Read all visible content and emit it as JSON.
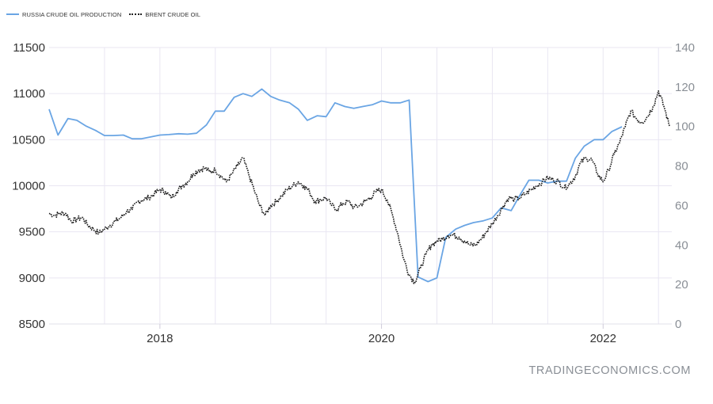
{
  "legend": {
    "series_1": "RUSSIA CRUDE OIL PRODUCTION",
    "series_2": "BRENT CRUDE OIL"
  },
  "watermark": "TRADINGECONOMICS.COM",
  "colors": {
    "russia_line": "#6aa5e4",
    "brent_line": "#1a1a1a",
    "grid": "#e9e6f2"
  },
  "chart_data": {
    "type": "line",
    "grid": true,
    "legend_position": "top-left",
    "x_ticks": [
      "2018",
      "2020",
      "2022"
    ],
    "x_range": [
      2017.0,
      2022.62
    ],
    "y_left": {
      "ticks": [
        8500,
        9000,
        9500,
        10000,
        10500,
        11000,
        11500
      ],
      "range": [
        8500,
        11500
      ]
    },
    "y_right": {
      "ticks": [
        0,
        20,
        40,
        60,
        80,
        100,
        120,
        140
      ],
      "range": [
        0,
        140
      ]
    },
    "series": [
      {
        "name": "RUSSIA CRUDE OIL PRODUCTION",
        "axis": "left",
        "style": "solid",
        "x": [
          2017.0,
          2017.08,
          2017.17,
          2017.25,
          2017.33,
          2017.42,
          2017.5,
          2017.58,
          2017.67,
          2017.75,
          2017.83,
          2017.92,
          2018.0,
          2018.08,
          2018.17,
          2018.25,
          2018.33,
          2018.42,
          2018.5,
          2018.58,
          2018.67,
          2018.75,
          2018.83,
          2018.92,
          2019.0,
          2019.08,
          2019.17,
          2019.25,
          2019.33,
          2019.42,
          2019.5,
          2019.58,
          2019.67,
          2019.75,
          2019.83,
          2019.92,
          2020.0,
          2020.08,
          2020.17,
          2020.25,
          2020.33,
          2020.42,
          2020.5,
          2020.58,
          2020.67,
          2020.75,
          2020.83,
          2020.92,
          2021.0,
          2021.08,
          2021.17,
          2021.25,
          2021.33,
          2021.42,
          2021.5,
          2021.58,
          2021.67,
          2021.75,
          2021.83,
          2021.92,
          2022.0,
          2022.08,
          2022.17
        ],
        "y": [
          10830,
          10550,
          10730,
          10710,
          10650,
          10600,
          10545,
          10545,
          10550,
          10510,
          10510,
          10530,
          10550,
          10555,
          10565,
          10560,
          10570,
          10660,
          10810,
          10810,
          10960,
          11000,
          10970,
          11050,
          10970,
          10930,
          10900,
          10830,
          10710,
          10760,
          10750,
          10900,
          10860,
          10840,
          10860,
          10880,
          10920,
          10900,
          10900,
          10930,
          9010,
          8960,
          9000,
          9440,
          9530,
          9570,
          9600,
          9620,
          9650,
          9760,
          9730,
          9900,
          10060,
          10060,
          10030,
          10050,
          10050,
          10300,
          10430,
          10500,
          10500,
          10590,
          10640
        ]
      },
      {
        "name": "BRENT CRUDE OIL",
        "axis": "right",
        "style": "dotted",
        "x": [
          2017.0,
          2017.05,
          2017.1,
          2017.15,
          2017.2,
          2017.25,
          2017.3,
          2017.35,
          2017.4,
          2017.45,
          2017.5,
          2017.55,
          2017.6,
          2017.65,
          2017.7,
          2017.75,
          2017.8,
          2017.85,
          2017.9,
          2017.95,
          2018.0,
          2018.05,
          2018.1,
          2018.15,
          2018.2,
          2018.25,
          2018.3,
          2018.35,
          2018.4,
          2018.45,
          2018.5,
          2018.55,
          2018.6,
          2018.65,
          2018.7,
          2018.75,
          2018.8,
          2018.85,
          2018.9,
          2018.95,
          2019.0,
          2019.05,
          2019.1,
          2019.15,
          2019.2,
          2019.25,
          2019.3,
          2019.35,
          2019.4,
          2019.45,
          2019.5,
          2019.55,
          2019.6,
          2019.65,
          2019.7,
          2019.75,
          2019.8,
          2019.85,
          2019.9,
          2019.95,
          2020.0,
          2020.05,
          2020.1,
          2020.15,
          2020.2,
          2020.25,
          2020.3,
          2020.35,
          2020.4,
          2020.45,
          2020.5,
          2020.55,
          2020.6,
          2020.65,
          2020.7,
          2020.75,
          2020.8,
          2020.85,
          2020.9,
          2020.95,
          2021.0,
          2021.05,
          2021.1,
          2021.15,
          2021.2,
          2021.25,
          2021.3,
          2021.35,
          2021.4,
          2021.45,
          2021.5,
          2021.55,
          2021.6,
          2021.65,
          2021.7,
          2021.75,
          2021.8,
          2021.85,
          2021.9,
          2021.95,
          2022.0,
          2022.05,
          2022.1,
          2022.15,
          2022.2,
          2022.25,
          2022.3,
          2022.35,
          2022.4,
          2022.45,
          2022.5,
          2022.55,
          2022.6
        ],
        "y": [
          56,
          55,
          56,
          56,
          52,
          53,
          54,
          50,
          48,
          46,
          48,
          50,
          52,
          54,
          57,
          58,
          62,
          63,
          64,
          66,
          68,
          67,
          64,
          67,
          70,
          72,
          76,
          78,
          79,
          77,
          78,
          75,
          72,
          76,
          80,
          84,
          76,
          68,
          60,
          55,
          60,
          62,
          65,
          68,
          70,
          72,
          70,
          67,
          62,
          63,
          64,
          60,
          58,
          61,
          62,
          59,
          60,
          62,
          64,
          67,
          68,
          63,
          55,
          45,
          33,
          25,
          21,
          28,
          35,
          40,
          42,
          43,
          45,
          45,
          44,
          42,
          40,
          40,
          43,
          47,
          51,
          55,
          60,
          64,
          63,
          64,
          66,
          68,
          70,
          72,
          74,
          73,
          72,
          69,
          71,
          75,
          82,
          84,
          83,
          76,
          72,
          78,
          86,
          92,
          100,
          108,
          104,
          102,
          105,
          110,
          118,
          110,
          100
        ]
      }
    ]
  }
}
